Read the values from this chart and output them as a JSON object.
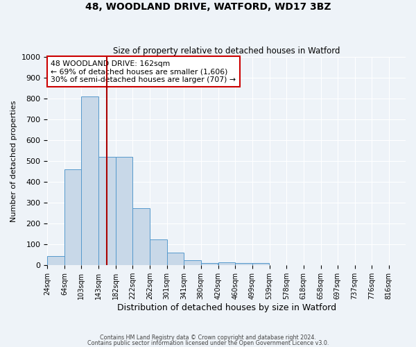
{
  "title1": "48, WOODLAND DRIVE, WATFORD, WD17 3BZ",
  "title2": "Size of property relative to detached houses in Watford",
  "xlabel": "Distribution of detached houses by size in Watford",
  "ylabel": "Number of detached properties",
  "bar_labels": [
    "24sqm",
    "64sqm",
    "103sqm",
    "143sqm",
    "182sqm",
    "222sqm",
    "262sqm",
    "301sqm",
    "341sqm",
    "380sqm",
    "420sqm",
    "460sqm",
    "499sqm",
    "539sqm",
    "578sqm",
    "618sqm",
    "658sqm",
    "697sqm",
    "737sqm",
    "776sqm",
    "816sqm"
  ],
  "bar_values": [
    45,
    460,
    810,
    520,
    520,
    275,
    125,
    60,
    25,
    10,
    13,
    10,
    10,
    0,
    0,
    0,
    0,
    0,
    0,
    0,
    0
  ],
  "bar_color": "#c8d8e8",
  "bar_edge_color": "#5599cc",
  "vline_x": 162,
  "annotation_line1": "48 WOODLAND DRIVE: 162sqm",
  "annotation_line2": "← 69% of detached houses are smaller (1,606)",
  "annotation_line3": "30% of semi-detached houses are larger (707) →",
  "annotation_box_color": "#ffffff",
  "annotation_box_edgecolor": "#cc0000",
  "vline_color": "#aa0000",
  "ylim": [
    0,
    1000
  ],
  "xlim_min": 24,
  "xlim_max": 855,
  "bin_width": 39,
  "bin_starts": [
    24,
    64,
    103,
    143,
    182,
    222,
    262,
    301,
    341,
    380,
    420,
    460,
    499,
    539,
    578,
    618,
    658,
    697,
    737,
    776,
    816
  ],
  "footer1": "Contains HM Land Registry data © Crown copyright and database right 2024.",
  "footer2": "Contains public sector information licensed under the Open Government Licence v3.0.",
  "background_color": "#eef3f8",
  "grid_color": "#ffffff"
}
